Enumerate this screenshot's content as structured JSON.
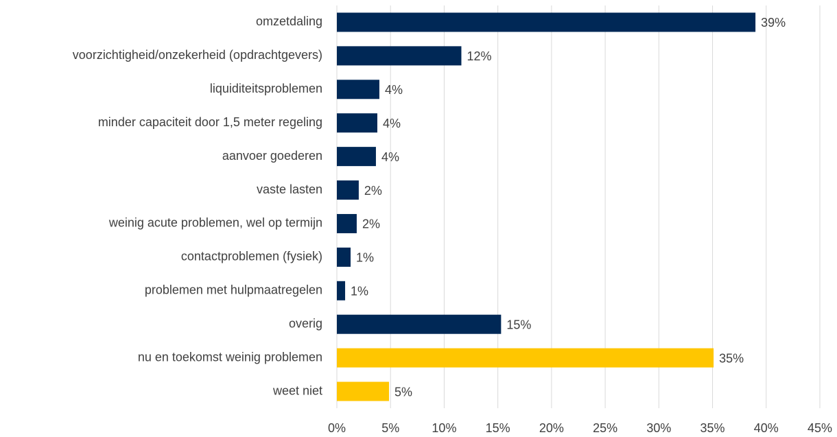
{
  "chart_data": {
    "type": "barh",
    "categories": [
      "omzetdaling",
      "voorzichtigheid/onzekerheid (opdrachtgevers)",
      "liquiditeitsproblemen",
      "minder capaciteit door 1,5 meter regeling",
      "aanvoer goederen",
      "vaste lasten",
      "weinig acute problemen, wel op termijn",
      "contactproblemen (fysiek)",
      "problemen met hulpmaatregelen",
      "overig",
      "nu en toekomst weinig problemen",
      "weet niet"
    ],
    "values": [
      39,
      11.6,
      3.96,
      3.77,
      3.64,
      2.04,
      1.85,
      1.28,
      0.77,
      15.3,
      35.1,
      4.86
    ],
    "value_labels": [
      "39%",
      "12%",
      "4%",
      "4%",
      "4%",
      "2%",
      "2%",
      "1%",
      "1%",
      "15%",
      "35%",
      "5%"
    ],
    "colors": [
      "#002856",
      "#002856",
      "#002856",
      "#002856",
      "#002856",
      "#002856",
      "#002856",
      "#002856",
      "#002856",
      "#002856",
      "#ffc600",
      "#ffc600"
    ],
    "xlim": [
      0,
      45
    ],
    "xticks": [
      {
        "value": 0,
        "label": "0%"
      },
      {
        "value": 5,
        "label": "5%"
      },
      {
        "value": 10,
        "label": "10%"
      },
      {
        "value": 15,
        "label": "15%"
      },
      {
        "value": 20,
        "label": "20%"
      },
      {
        "value": 25,
        "label": "25%"
      },
      {
        "value": 30,
        "label": "30%"
      },
      {
        "value": 35,
        "label": "35%"
      },
      {
        "value": 40,
        "label": "40%"
      },
      {
        "value": 45,
        "label": "45%"
      }
    ],
    "grid": true
  }
}
